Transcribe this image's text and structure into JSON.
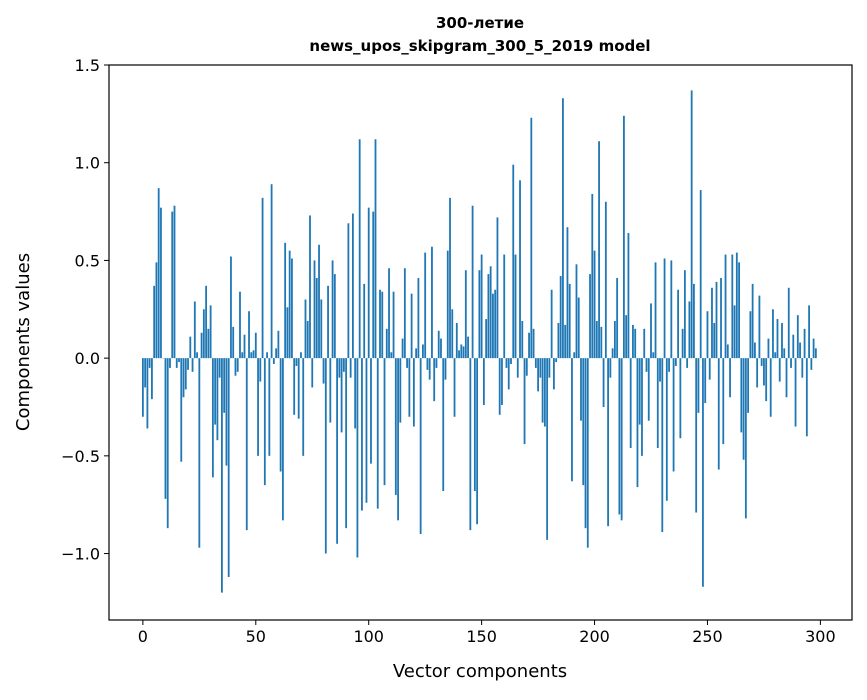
{
  "chart_data": {
    "type": "bar",
    "title": "300-летие",
    "subtitle": "news_upos_skipgram_300_5_2019 model",
    "xlabel": "Vector components",
    "ylabel": "Components values",
    "xlim": [
      -15,
      314
    ],
    "ylim": [
      -1.34,
      1.5
    ],
    "xticks": [
      0,
      50,
      100,
      150,
      200,
      250,
      300
    ],
    "xtick_labels": [
      "0",
      "50",
      "100",
      "150",
      "200",
      "250",
      "300"
    ],
    "yticks": [
      -1.0,
      -0.5,
      0.0,
      0.5,
      1.0,
      1.5
    ],
    "ytick_labels": [
      "−1.0",
      "−0.5",
      "0.0",
      "0.5",
      "1.0",
      "1.5"
    ],
    "grid": false,
    "color": "#1f77b4",
    "values": [
      -0.3,
      -0.15,
      -0.36,
      -0.05,
      -0.21,
      0.37,
      0.49,
      0.87,
      0.77,
      0,
      -0.72,
      -0.87,
      -0.05,
      0.75,
      0.78,
      -0.05,
      -0.02,
      -0.53,
      -0.2,
      -0.16,
      -0.06,
      0.11,
      -0.07,
      0.29,
      0.03,
      -0.97,
      0.13,
      0.25,
      0.37,
      0.15,
      0.27,
      -0.61,
      -0.34,
      -0.42,
      -0.1,
      -1.2,
      -0.28,
      -0.55,
      -1.12,
      0.52,
      0.16,
      -0.09,
      -0.07,
      0.34,
      0.03,
      0.12,
      -0.88,
      0.24,
      0.03,
      0.04,
      0.13,
      -0.5,
      -0.12,
      0.82,
      -0.65,
      0.03,
      -0.5,
      0.89,
      -0.03,
      0.05,
      0.14,
      -0.58,
      -0.83,
      0.59,
      0.26,
      0.55,
      0.51,
      -0.29,
      -0.04,
      -0.31,
      0.03,
      -0.5,
      0.3,
      0.19,
      0.73,
      -0.15,
      0.5,
      0.41,
      0.58,
      0.3,
      -0.13,
      -1.0,
      0.37,
      -0.33,
      0.5,
      0.43,
      -0.95,
      -0.1,
      -0.38,
      -0.07,
      -0.87,
      0.69,
      -0.1,
      0.74,
      -0.36,
      -1.02,
      1.12,
      -0.78,
      0.38,
      -0.74,
      0.77,
      -0.54,
      0.75,
      1.12,
      -0.77,
      0.35,
      0.34,
      -0.65,
      0.15,
      0.46,
      0.03,
      0.34,
      -0.7,
      -0.83,
      -0.33,
      0.1,
      0.46,
      -0.05,
      -0.3,
      0.33,
      -0.35,
      0.05,
      0.41,
      -0.9,
      0.07,
      0.54,
      -0.06,
      -0.11,
      0.57,
      -0.22,
      -0.05,
      0.14,
      0.1,
      -0.68,
      -0.11,
      0.55,
      0.82,
      0.25,
      -0.3,
      0.18,
      0.04,
      0.07,
      0.06,
      0.45,
      0.11,
      -0.88,
      0.78,
      -0.68,
      -0.85,
      0.45,
      0.53,
      -0.24,
      0.2,
      0.43,
      0.47,
      0.33,
      0.35,
      0.72,
      -0.29,
      -0.24,
      0.53,
      -0.05,
      -0.16,
      -0.03,
      0.99,
      0.53,
      -0.1,
      0.91,
      0.19,
      -0.44,
      -0.09,
      0.13,
      1.23,
      0.15,
      -0.05,
      -0.17,
      -0.1,
      -0.33,
      -0.35,
      -0.93,
      -0.1,
      0.35,
      -0.16,
      -0.02,
      0.18,
      0.42,
      1.33,
      0.17,
      0.67,
      0.38,
      -0.63,
      0.03,
      0.48,
      0.31,
      -0.32,
      -0.65,
      -0.87,
      -0.97,
      0.43,
      0.84,
      0.55,
      0.19,
      1.11,
      0.16,
      -0.25,
      0.8,
      -0.86,
      -0.1,
      0.05,
      0.19,
      0.41,
      -0.8,
      -0.83,
      1.24,
      0.22,
      0.64,
      -0.46,
      0.17,
      0.15,
      -0.66,
      -0.34,
      -0.5,
      0.15,
      -0.07,
      -0.32,
      0.28,
      0.03,
      0.49,
      -0.46,
      -0.12,
      -0.89,
      0.51,
      -0.73,
      -0.07,
      0.5,
      -0.58,
      -0.04,
      0.35,
      -0.41,
      0.15,
      0.45,
      -0.05,
      0.29,
      1.37,
      0.38,
      -0.79,
      -0.28,
      0.86,
      -1.17,
      -0.23,
      0.24,
      -0.11,
      0.36,
      0.18,
      0.39,
      -0.57,
      0.41,
      -0.44,
      0.53,
      0.07,
      -0.2,
      0.53,
      0.27,
      0.54,
      0.49,
      -0.38,
      -0.52,
      -0.82,
      -0.28,
      0.24,
      0.38,
      0.08,
      -0.15,
      0.32,
      -0.04,
      -0.14,
      -0.22,
      0.1,
      -0.3,
      0.25,
      0.03,
      0.2,
      -0.12,
      0.18,
      0.05,
      -0.2,
      0.36,
      -0.05,
      0.12,
      -0.35,
      0.22,
      0.08,
      -0.1,
      0.15,
      -0.4,
      0.27,
      -0.06,
      0.1,
      0.05
    ]
  }
}
